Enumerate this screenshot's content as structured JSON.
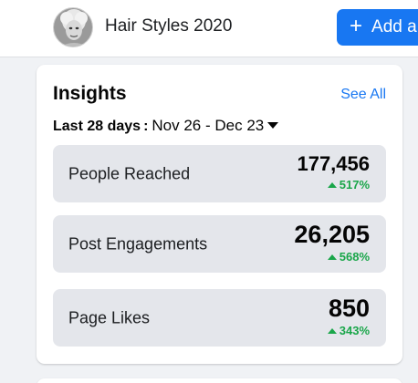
{
  "header": {
    "page_name": "Hair Styles 2020",
    "add_button_label": "Add a B",
    "accent_color": "#1877f2"
  },
  "insights": {
    "title": "Insights",
    "see_all": "See All",
    "range_label": "Last 28 days",
    "range_separator": ":",
    "range_value": "Nov 26 - Dec 23",
    "metrics": [
      {
        "label": "People Reached",
        "value": "177,456",
        "change": "517%"
      },
      {
        "label": "Post Engagements",
        "value": "26,205",
        "change": "568%"
      },
      {
        "label": "Page Likes",
        "value": "850",
        "change": "343%"
      }
    ],
    "positive_color": "#1aa64a"
  }
}
